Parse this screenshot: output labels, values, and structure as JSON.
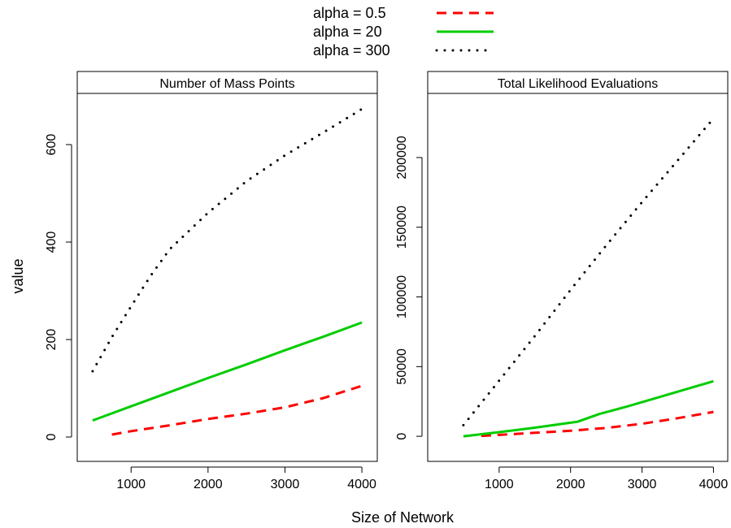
{
  "legend": {
    "placement": "top-center",
    "entries": [
      {
        "label": "alpha = 0.5",
        "color": "#ff0000",
        "style": "dashed"
      },
      {
        "label": "alpha = 20",
        "color": "#00cc00",
        "style": "solid"
      },
      {
        "label": "alpha = 300",
        "color": "#000000",
        "style": "dotted"
      }
    ]
  },
  "shared": {
    "ylabel": "value",
    "xlabel": "Size of Network"
  },
  "chart_data": [
    {
      "type": "line",
      "title": "Number of Mass Points",
      "xlim": [
        300,
        4200
      ],
      "ylim": [
        -50,
        705
      ],
      "x_ticks": [
        1000,
        2000,
        3000,
        4000
      ],
      "x_tick_labels": [
        "1000",
        "2000",
        "3000",
        "4000"
      ],
      "y_ticks": [
        0,
        200,
        400,
        600
      ],
      "y_tick_labels": [
        "0",
        "200",
        "400",
        "600"
      ],
      "series": [
        {
          "name": "alpha = 0.5",
          "x": [
            750,
            1000,
            1500,
            2000,
            2500,
            3000,
            3500,
            4000
          ],
          "y": [
            5,
            12,
            24,
            37,
            48,
            61,
            80,
            105
          ]
        },
        {
          "name": "alpha = 20",
          "x": [
            500,
            1000,
            1500,
            2000,
            2500,
            3000,
            3500,
            4000
          ],
          "y": [
            34,
            63,
            92,
            121,
            149,
            178,
            206,
            235
          ]
        },
        {
          "name": "alpha = 300",
          "x": [
            500,
            750,
            1000,
            1250,
            1500,
            2000,
            2500,
            3000,
            3500,
            4000
          ],
          "y": [
            135,
            205,
            268,
            330,
            385,
            460,
            525,
            578,
            625,
            673
          ]
        }
      ]
    },
    {
      "type": "line",
      "title": "Total Likelihood Evaluations",
      "xlim": [
        0,
        4200
      ],
      "ylim": [
        -18000,
        246000
      ],
      "x_ticks": [
        1000,
        2000,
        3000,
        4000
      ],
      "x_tick_labels": [
        "1000",
        "2000",
        "3000",
        "4000"
      ],
      "y_ticks": [
        0,
        50000,
        100000,
        150000,
        200000
      ],
      "y_tick_labels": [
        "0",
        "50000",
        "100000",
        "150000",
        "200000"
      ],
      "series": [
        {
          "name": "alpha = 0.5",
          "x": [
            750,
            1000,
            1500,
            2000,
            2500,
            3000,
            3500,
            4000
          ],
          "y": [
            300,
            1000,
            2500,
            4000,
            6000,
            9000,
            13000,
            17500
          ]
        },
        {
          "name": "alpha = 20",
          "x": [
            500,
            1000,
            1500,
            2100,
            2400,
            2800,
            3200,
            3600,
            4000
          ],
          "y": [
            0,
            3000,
            6200,
            10500,
            16000,
            21500,
            27500,
            33500,
            39500
          ]
        },
        {
          "name": "alpha = 300",
          "x": [
            500,
            1000,
            1500,
            2000,
            2500,
            3000,
            3500,
            4000
          ],
          "y": [
            8000,
            40000,
            72000,
            105000,
            137000,
            168000,
            198000,
            228000
          ]
        }
      ]
    }
  ]
}
